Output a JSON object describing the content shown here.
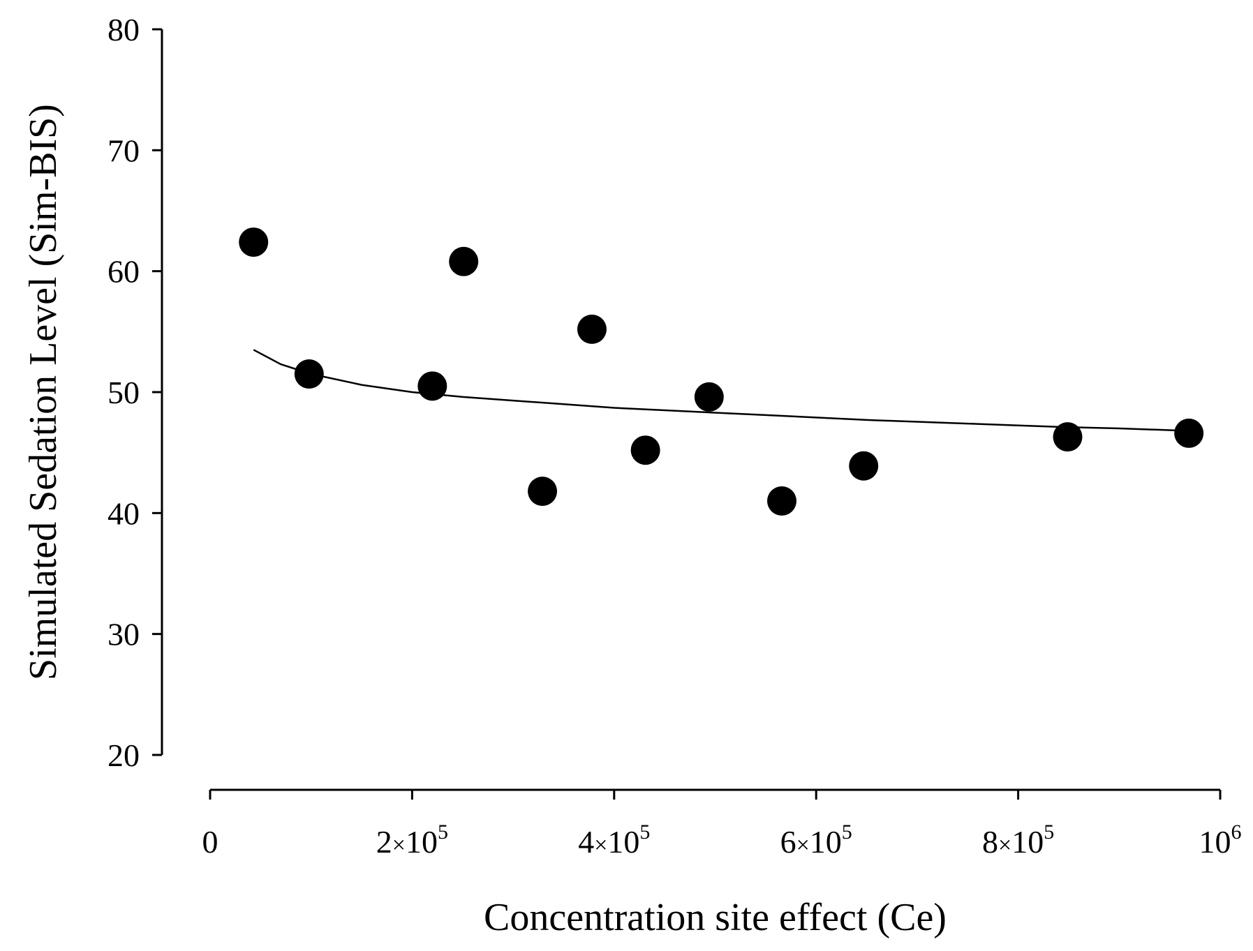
{
  "chart_data": {
    "type": "scatter",
    "title": "",
    "xlabel": "Concentration site effect (Ce)",
    "ylabel": "Simulated Sedation Level (Sim-BIS)",
    "xlim": [
      0,
      1000000
    ],
    "ylim": [
      20,
      80
    ],
    "x_ticks": [
      {
        "value": 0,
        "label": "0"
      },
      {
        "value": 200000,
        "label": "2×10⁵"
      },
      {
        "value": 400000,
        "label": "4×10⁵"
      },
      {
        "value": 600000,
        "label": "6×10⁵"
      },
      {
        "value": 800000,
        "label": "8×10⁵"
      },
      {
        "value": 1000000,
        "label": "10⁶"
      }
    ],
    "y_ticks": [
      {
        "value": 20,
        "label": "20"
      },
      {
        "value": 30,
        "label": "30"
      },
      {
        "value": 40,
        "label": "40"
      },
      {
        "value": 50,
        "label": "50"
      },
      {
        "value": 60,
        "label": "60"
      },
      {
        "value": 70,
        "label": "70"
      },
      {
        "value": 80,
        "label": "80"
      }
    ],
    "series": [
      {
        "name": "Sim-BIS",
        "type": "scatter",
        "color": "#000000",
        "points": [
          {
            "x": 43000,
            "y": 62.4
          },
          {
            "x": 98000,
            "y": 51.5
          },
          {
            "x": 220000,
            "y": 50.5
          },
          {
            "x": 251000,
            "y": 60.8
          },
          {
            "x": 329000,
            "y": 41.8
          },
          {
            "x": 378000,
            "y": 55.2
          },
          {
            "x": 431000,
            "y": 45.2
          },
          {
            "x": 494000,
            "y": 49.6
          },
          {
            "x": 566000,
            "y": 41.0
          },
          {
            "x": 647000,
            "y": 43.9
          },
          {
            "x": 849000,
            "y": 46.3
          },
          {
            "x": 969000,
            "y": 46.6
          }
        ]
      },
      {
        "name": "Fit curve",
        "type": "line",
        "color": "#000000",
        "points": [
          {
            "x": 43000,
            "y": 53.5
          },
          {
            "x": 70000,
            "y": 52.3
          },
          {
            "x": 100000,
            "y": 51.5
          },
          {
            "x": 150000,
            "y": 50.6
          },
          {
            "x": 200000,
            "y": 50.0
          },
          {
            "x": 250000,
            "y": 49.6
          },
          {
            "x": 300000,
            "y": 49.3
          },
          {
            "x": 350000,
            "y": 49.0
          },
          {
            "x": 400000,
            "y": 48.7
          },
          {
            "x": 450000,
            "y": 48.5
          },
          {
            "x": 500000,
            "y": 48.3
          },
          {
            "x": 550000,
            "y": 48.1
          },
          {
            "x": 600000,
            "y": 47.9
          },
          {
            "x": 650000,
            "y": 47.7
          },
          {
            "x": 700000,
            "y": 47.55
          },
          {
            "x": 750000,
            "y": 47.4
          },
          {
            "x": 800000,
            "y": 47.25
          },
          {
            "x": 850000,
            "y": 47.1
          },
          {
            "x": 900000,
            "y": 47.0
          },
          {
            "x": 969000,
            "y": 46.8
          }
        ]
      }
    ]
  }
}
